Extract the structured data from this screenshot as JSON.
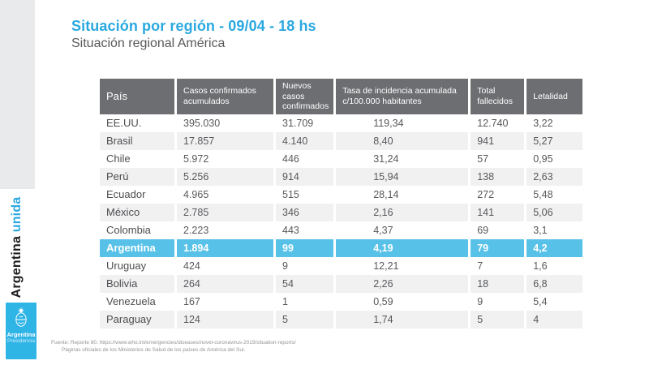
{
  "page": {
    "title": "Situación por región - 09/04 - 18 hs",
    "subtitle": "Situación regional América"
  },
  "sidebar": {
    "brand_black": "Argentina",
    "brand_blue": "unida",
    "logo_line1": "Argentina",
    "logo_line2": "Presidencia"
  },
  "colors": {
    "accent_blue": "#2AA8E0",
    "highlight_row_blue": "#57C1E8",
    "header_gray": "#6D6E71",
    "stripe_gray": "#F1F1F2",
    "rail_gray": "#E9EAEB",
    "logo_blue": "#2FB4E6"
  },
  "table": {
    "headers": [
      "País",
      "Casos confirmados acumulados",
      "Nuevos casos confirmados",
      "Tasa de incidencia acumulada c/100.000 habitantes",
      "Total fallecidos",
      "Letalidad"
    ],
    "rows": [
      {
        "variant": "white",
        "cells": [
          "EE.UU.",
          "395.030",
          "31.709",
          "119,34",
          "12.740",
          "3,22"
        ]
      },
      {
        "variant": "stripe",
        "cells": [
          "Brasil",
          "17.857",
          "4.140",
          "8,40",
          "941",
          "5,27"
        ]
      },
      {
        "variant": "white",
        "cells": [
          "Chile",
          "5.972",
          "446",
          "31,24",
          "57",
          "0,95"
        ]
      },
      {
        "variant": "stripe",
        "cells": [
          "Perú",
          "5.256",
          "914",
          "15,94",
          "138",
          "2,63"
        ]
      },
      {
        "variant": "white",
        "cells": [
          "Ecuador",
          "4.965",
          "515",
          "28,14",
          "272",
          "5,48"
        ]
      },
      {
        "variant": "stripe",
        "cells": [
          "México",
          "2.785",
          "346",
          "2,16",
          "141",
          "5,06"
        ]
      },
      {
        "variant": "white",
        "cells": [
          "Colombia",
          "2.223",
          "443",
          "4,37",
          "69",
          "3,1"
        ]
      },
      {
        "variant": "highlight",
        "cells": [
          "Argentina",
          "1.894",
          "99",
          "4,19",
          "79",
          "4,2"
        ]
      },
      {
        "variant": "white",
        "cells": [
          "Uruguay",
          "424",
          "9",
          "12,21",
          "7",
          "1,6"
        ]
      },
      {
        "variant": "stripe",
        "cells": [
          "Bolivia",
          "264",
          "54",
          "2,26",
          "18",
          "6,8"
        ]
      },
      {
        "variant": "white",
        "cells": [
          "Venezuela",
          "167",
          "1",
          "0,59",
          "9",
          "5,4"
        ]
      },
      {
        "variant": "stripe",
        "cells": [
          "Paraguay",
          "124",
          "5",
          "1,74",
          "5",
          "4"
        ]
      }
    ]
  },
  "footer": {
    "line1": "Fuente: Reporte 80. https://www.who.int/emergencies/diseases/novel-coronavirus-2019/situation-reports/",
    "line2": "Páginas oficiales de los Ministerios de Salud de los países de América del Sur."
  }
}
